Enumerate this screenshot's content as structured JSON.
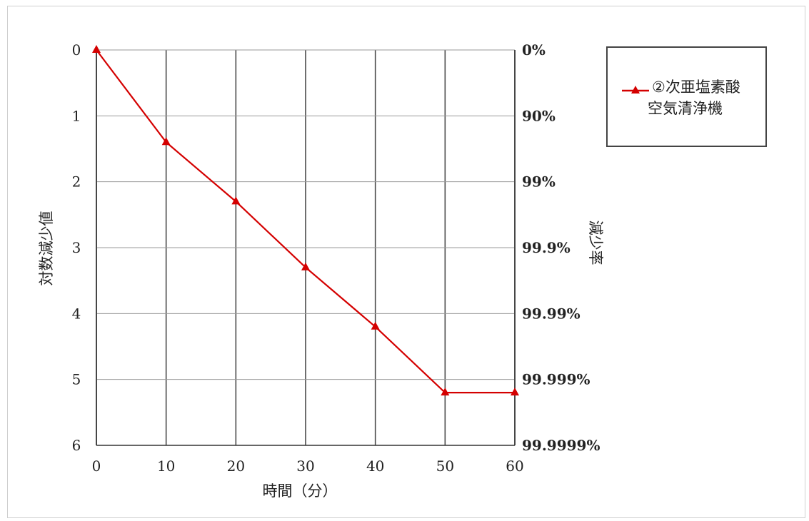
{
  "chart_data": {
    "type": "line",
    "x": [
      0,
      10,
      20,
      30,
      40,
      50,
      60
    ],
    "series": [
      {
        "name": "②次亜塩素酸空気清浄機",
        "values": [
          0,
          1.4,
          2.3,
          3.3,
          4.2,
          5.2,
          5.2
        ],
        "color": "#d40000",
        "marker": "triangle"
      }
    ],
    "xlabel": "時間（分）",
    "ylabel": "対数減少値",
    "y2label": "減少率",
    "xlim": [
      0,
      60
    ],
    "ylim": [
      0,
      6
    ],
    "y_inverted": true,
    "x_ticks": [
      "0",
      "10",
      "20",
      "30",
      "40",
      "50",
      "60"
    ],
    "y_ticks": [
      "0",
      "1",
      "2",
      "3",
      "4",
      "5",
      "6"
    ],
    "y2_ticks": [
      "0%",
      "90%",
      "99%",
      "99.9%",
      "99.99%",
      "99.999%",
      "99.9999%"
    ],
    "grid": true,
    "legend": {
      "position": "right",
      "line1": "②次亜塩素酸",
      "line2": "空気清浄機"
    }
  }
}
